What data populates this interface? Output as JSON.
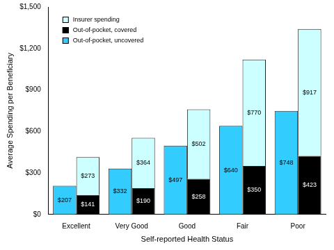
{
  "chart_data": {
    "type": "bar",
    "x_label": "Self-reported Health Status",
    "y_label": "Average Spending per Beneficiary",
    "categories": [
      "Excellent",
      "Very Good",
      "Good",
      "Fair",
      "Poor"
    ],
    "series": [
      {
        "name": "Insurer spending",
        "color": "#ccffff",
        "values": [
          273,
          364,
          502,
          770,
          917
        ],
        "value_labels": [
          "$273",
          "$364",
          "$502",
          "$770",
          "$917"
        ]
      },
      {
        "name": "Out-of-pocket, covered",
        "color": "#000000",
        "values": [
          141,
          190,
          258,
          350,
          423
        ],
        "value_labels": [
          "$141",
          "$190",
          "$258",
          "$350",
          "$423"
        ]
      },
      {
        "name": "Out-of-pocket, uncovered",
        "color": "#33ccff",
        "values": [
          207,
          332,
          497,
          640,
          748
        ],
        "value_labels": [
          "$207",
          "$332",
          "$497",
          "$640",
          "$748"
        ]
      }
    ],
    "stacked": [
      [
        "Out-of-pocket, uncovered"
      ],
      [
        "Out-of-pocket, covered",
        "Insurer spending"
      ]
    ],
    "ylim": [
      0,
      1500
    ],
    "yticks": [
      {
        "value": 0,
        "label": "$0"
      },
      {
        "value": 300,
        "label": "$300"
      },
      {
        "value": 600,
        "label": "$600"
      },
      {
        "value": 900,
        "label": "$900"
      },
      {
        "value": 1200,
        "label": "$1,200"
      },
      {
        "value": 1500,
        "label": "$1,500"
      }
    ],
    "grid": false,
    "legend": "top-left",
    "data_labels": true
  }
}
